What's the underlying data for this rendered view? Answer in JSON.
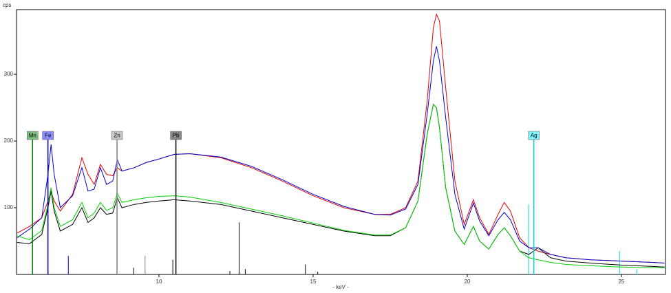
{
  "chart_data": {
    "type": "line",
    "y_label": "cps",
    "x_label": "- keV -",
    "xlim": [
      5.38,
      26.43
    ],
    "ylim": [
      0,
      397
    ],
    "xticks": [
      10,
      15,
      20,
      25
    ],
    "yticks": [
      100,
      200,
      300
    ],
    "x": [
      5.4,
      5.8,
      6.2,
      6.4,
      6.5,
      6.6,
      6.8,
      7.2,
      7.5,
      7.7,
      7.9,
      8.1,
      8.3,
      8.5,
      8.65,
      8.8,
      9.2,
      9.6,
      10,
      10.5,
      11,
      12,
      13,
      14,
      15,
      16,
      17,
      17.5,
      18,
      18.4,
      18.7,
      18.9,
      19.0,
      19.1,
      19.3,
      19.6,
      19.9,
      20.2,
      20.4,
      20.7,
      21.0,
      21.2,
      21.4,
      21.7,
      22.0,
      22.3,
      22.7,
      23.2,
      24,
      25,
      26,
      26.4
    ],
    "series": [
      {
        "color": "#e00000",
        "values": [
          62,
          72,
          85,
          110,
          125,
          110,
          95,
          120,
          175,
          150,
          135,
          165,
          150,
          148,
          160,
          155,
          160,
          168,
          173,
          180,
          181,
          175,
          160,
          140,
          118,
          100,
          90,
          90,
          100,
          140,
          260,
          370,
          390,
          380,
          280,
          140,
          75,
          112,
          85,
          60,
          90,
          108,
          95,
          55,
          40,
          35,
          30,
          25,
          22,
          20,
          18,
          17
        ]
      },
      {
        "color": "#0000d0",
        "values": [
          55,
          68,
          85,
          150,
          195,
          150,
          100,
          118,
          160,
          125,
          128,
          160,
          135,
          140,
          172,
          155,
          160,
          168,
          173,
          180,
          181,
          176,
          162,
          142,
          120,
          102,
          90,
          89,
          98,
          135,
          240,
          320,
          342,
          320,
          235,
          120,
          68,
          107,
          80,
          58,
          82,
          93,
          82,
          50,
          40,
          40,
          30,
          25,
          22,
          20,
          18,
          17
        ]
      },
      {
        "color": "#000000",
        "values": [
          48,
          46,
          60,
          100,
          125,
          95,
          65,
          75,
          100,
          78,
          85,
          100,
          90,
          92,
          115,
          100,
          105,
          108,
          110,
          112,
          110,
          105,
          95,
          85,
          75,
          65,
          58,
          58,
          70,
          110,
          210,
          255,
          250,
          220,
          130,
          65,
          45,
          72,
          50,
          38,
          60,
          70,
          58,
          35,
          30,
          40,
          25,
          20,
          17,
          14,
          12,
          11
        ]
      },
      {
        "color": "#00d000",
        "values": [
          58,
          52,
          66,
          105,
          130,
          100,
          72,
          82,
          108,
          85,
          92,
          108,
          96,
          100,
          122,
          108,
          112,
          115,
          117,
          118,
          116,
          108,
          98,
          88,
          77,
          66,
          59,
          59,
          70,
          110,
          210,
          255,
          250,
          220,
          130,
          65,
          45,
          72,
          50,
          38,
          60,
          70,
          58,
          35,
          25,
          22,
          18,
          15,
          13,
          11,
          10,
          10
        ]
      }
    ],
    "elements": [
      {
        "name": "Mn",
        "energy": 5.9,
        "color": "#008000",
        "fill": "#7fbf7f"
      },
      {
        "name": "Fe",
        "energy": 6.4,
        "color": "#0000c0",
        "fill": "#8c8cff"
      },
      {
        "name": "Zn",
        "energy": 8.64,
        "color": "#808080",
        "fill": "#c8c8c8"
      },
      {
        "name": "Pb",
        "energy": 10.55,
        "color": "#000000",
        "fill": "#888888"
      },
      {
        "name": "Ag",
        "energy": 22.16,
        "color": "#00d8e0",
        "fill": "#7ff4ff"
      }
    ],
    "sticks": [
      {
        "x": 5.9,
        "value": 100,
        "color": "#008000"
      },
      {
        "x": 7.06,
        "value": 28,
        "color": "#0000c0"
      },
      {
        "x": 9.18,
        "value": 10,
        "color": "#000000"
      },
      {
        "x": 9.55,
        "value": 28,
        "color": "#808080"
      },
      {
        "x": 10.45,
        "value": 22,
        "color": "#000000"
      },
      {
        "x": 12.3,
        "value": 5,
        "color": "#000000"
      },
      {
        "x": 12.6,
        "value": 78,
        "color": "#000000"
      },
      {
        "x": 12.8,
        "value": 8,
        "color": "#000000"
      },
      {
        "x": 14.75,
        "value": 15,
        "color": "#000000"
      },
      {
        "x": 15.15,
        "value": 4,
        "color": "#000000"
      },
      {
        "x": 21.99,
        "value": 105,
        "color": "#00d8e0"
      },
      {
        "x": 24.94,
        "value": 35,
        "color": "#00d8e0"
      },
      {
        "x": 25.5,
        "value": 8,
        "color": "#00d8e0"
      }
    ]
  }
}
